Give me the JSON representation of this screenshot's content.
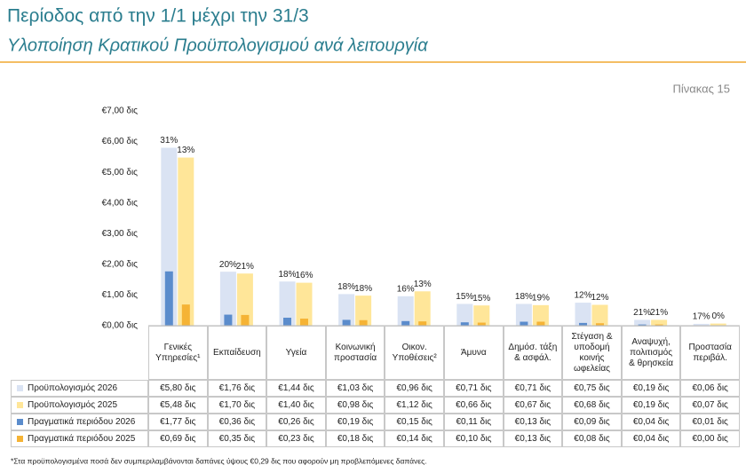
{
  "header": {
    "title": "Περίοδος από την 1/1 μέχρι την 31/3",
    "subtitle": "Υλοποίηση Κρατικού Προϋπολογισμού ανά λειτουργία",
    "table_number": "Πίνακας 15"
  },
  "chart_data": {
    "type": "bar",
    "categories": [
      "Γενικές\nΥπηρεσίες¹",
      "Εκπαίδευση",
      "Υγεία",
      "Κοινωνική\nπροστασία",
      "Οικον.\nΥποθέσεις²",
      "Άμυνα",
      "Δημόσ. τάξη\n& ασφάλ.",
      "Στέγαση &\nυποδομή\nκοινής\nωφελείας",
      "Αναψυχή,\nπολιτισμός\n& θρησκεία",
      "Προστασία\nπεριβάλ."
    ],
    "ylim": [
      0,
      7
    ],
    "yticks": [
      {
        "value": 0,
        "label": "€0,00 δις"
      },
      {
        "value": 1,
        "label": "€1,00 δις"
      },
      {
        "value": 2,
        "label": "€2,00 δις"
      },
      {
        "value": 3,
        "label": "€3,00 δις"
      },
      {
        "value": 4,
        "label": "€4,00 δις"
      },
      {
        "value": 5,
        "label": "€5,00 δις"
      },
      {
        "value": 6,
        "label": "€6,00 δις"
      },
      {
        "value": 7,
        "label": "€7,00 δις"
      }
    ],
    "grid": false,
    "series": [
      {
        "name": "Προϋπολογισμός 2026",
        "color": "#dae3f3",
        "values": [
          5.8,
          1.76,
          1.44,
          1.03,
          0.96,
          0.71,
          0.71,
          0.75,
          0.19,
          0.06
        ],
        "value_labels": [
          "€5,80 δις",
          "€1,76 δις",
          "€1,44 δις",
          "€1,03 δις",
          "€0,96 δις",
          "€0,71 δις",
          "€0,71 δις",
          "€0,75 δις",
          "€0,19 δις",
          "€0,06 δις"
        ]
      },
      {
        "name": "Προϋπολογισμός 2025",
        "color": "#ffe699",
        "values": [
          5.48,
          1.7,
          1.4,
          0.98,
          1.12,
          0.66,
          0.67,
          0.68,
          0.19,
          0.07
        ],
        "value_labels": [
          "€5,48 δις",
          "€1,70 δις",
          "€1,40 δις",
          "€0,98 δις",
          "€1,12 δις",
          "€0,66 δις",
          "€0,67 δις",
          "€0,68 δις",
          "€0,19 δις",
          "€0,07 δις"
        ]
      },
      {
        "name": "Πραγματικά περιόδου 2026",
        "color": "#5b8ccc",
        "values": [
          1.77,
          0.36,
          0.26,
          0.19,
          0.15,
          0.11,
          0.13,
          0.09,
          0.04,
          0.01
        ],
        "value_labels": [
          "€1,77 δις",
          "€0,36 δις",
          "€0,26 δις",
          "€0,19 δις",
          "€0,15 δις",
          "€0,11 δις",
          "€0,13 δις",
          "€0,09 δις",
          "€0,04 δις",
          "€0,01 δις"
        ]
      },
      {
        "name": "Πραγματικά περιόδου 2025",
        "color": "#f5b335",
        "values": [
          0.69,
          0.35,
          0.23,
          0.18,
          0.14,
          0.1,
          0.13,
          0.08,
          0.04,
          0.0
        ],
        "value_labels": [
          "€0,69 δις",
          "€0,35 δις",
          "€0,23 δις",
          "€0,18 δις",
          "€0,14 δις",
          "€0,10 δις",
          "€0,13 δις",
          "€0,08 δις",
          "€0,04 δις",
          "€0,00 δις"
        ]
      }
    ],
    "pct_labels": [
      [
        "31%",
        "20%",
        "18%",
        "18%",
        "16%",
        "15%",
        "18%",
        "12%",
        "21%",
        "17%"
      ],
      [
        "13%",
        "21%",
        "16%",
        "18%",
        "13%",
        "15%",
        "19%",
        "12%",
        "21%",
        "0%"
      ]
    ]
  },
  "footnote": "*Στα προϋπολογισμένα ποσά δεν συμπεριλαμβάνονται δαπάνες ύψους €0,29 δις που αφορούν μη προβλεπόμενες δαπάνες."
}
